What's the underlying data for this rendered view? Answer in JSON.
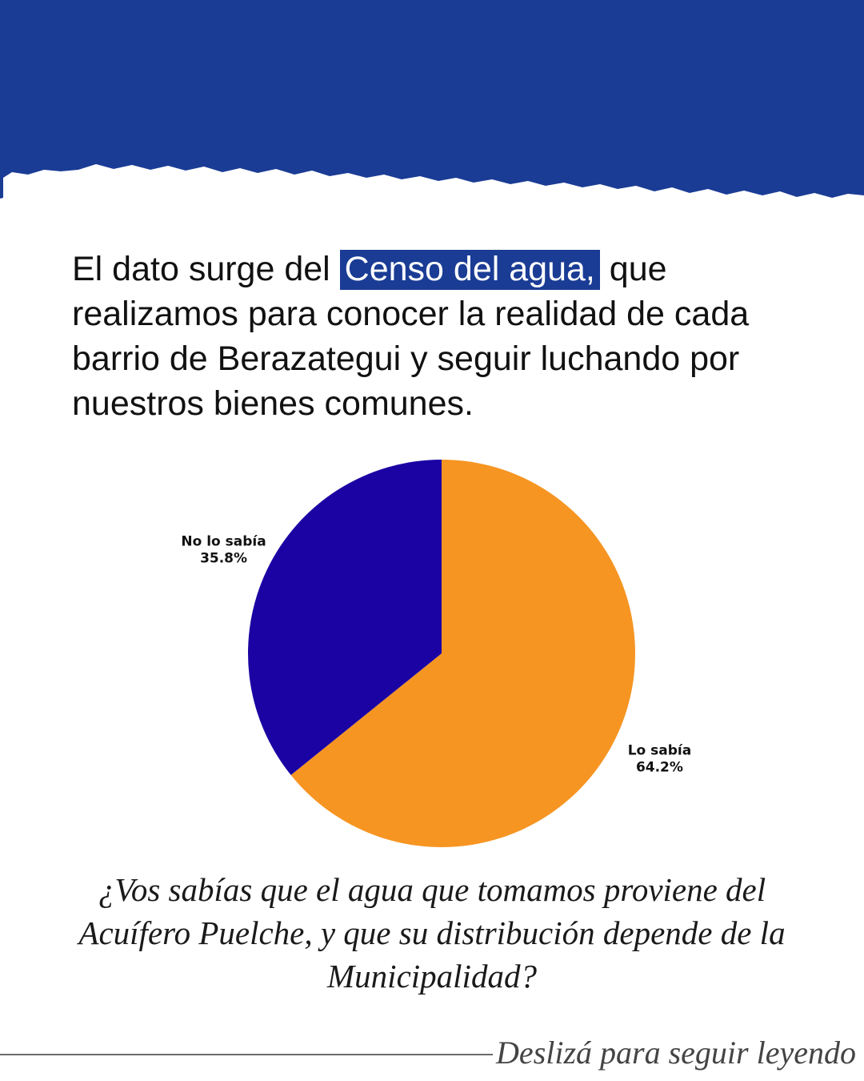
{
  "colors": {
    "banner": "#1a3c95",
    "highlight_bg": "#1a3c95",
    "slice_lo_sabia": "#f69522",
    "slice_no_lo_sabia": "#1b03a3"
  },
  "headline": {
    "before": "El dato surge del ",
    "highlight": "Censo del agua,",
    "after": " que realizamos para conocer la realidad de cada barrio de Berazategui y seguir luchando por nuestros bienes comunes."
  },
  "chart_data": {
    "type": "pie",
    "title": "",
    "slices": [
      {
        "label": "Lo sabía",
        "value": 64.2,
        "value_label": "64.2%",
        "color": "#f69522"
      },
      {
        "label": "No lo sabía",
        "value": 35.8,
        "value_label": "35.8%",
        "color": "#1b03a3"
      }
    ]
  },
  "question": "¿Vos sabías que el agua que tomamos proviene del Acuífero Puelche, y que su distribución depende de la Municipalidad?",
  "footer": {
    "cta": "Deslizá para seguir leyendo"
  }
}
